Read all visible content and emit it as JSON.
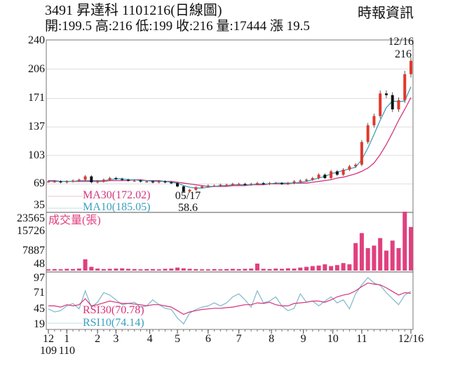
{
  "header": {
    "title": "3491  昇達科 1101216(日線圖)",
    "quote": "開:199.5 高:216 低:199 收:216 量:17444 漲 19.5",
    "source": "時報資訊"
  },
  "colors": {
    "up": "#e0392b",
    "down": "#111111",
    "ma30": "#d6337a",
    "ma10": "#3a9fc0",
    "volume": "#e0407f",
    "rsi30": "#d6337a",
    "rsi10": "#7fb8cc",
    "grid": "#dddddd"
  },
  "chart_data": [
    {
      "type": "candlestick",
      "panel": "price",
      "yticks": [
        "240",
        "206",
        "171",
        "137",
        "103",
        "69",
        "35"
      ],
      "ylim": [
        35,
        240
      ],
      "last_label": {
        "date": "12/16",
        "value": "216"
      },
      "low_label": {
        "date": "05/17",
        "value": "58.6"
      },
      "legend": {
        "ma30": "MA30(172.02)",
        "ma10": "MA10(185.05)"
      },
      "close": [
        72,
        72,
        71,
        72,
        73,
        74,
        78,
        71,
        72,
        74,
        76,
        75,
        74,
        73,
        73,
        72,
        72,
        71,
        72,
        71,
        70,
        66,
        60,
        62,
        65,
        66,
        67,
        67,
        68,
        68,
        69,
        69,
        68,
        69,
        70,
        69,
        70,
        70,
        69,
        70,
        72,
        73,
        74,
        76,
        80,
        76,
        84,
        80,
        86,
        90,
        92,
        119,
        139,
        150,
        177,
        175,
        158,
        169,
        200,
        216
      ],
      "ma10": [
        72,
        72,
        72,
        72,
        72,
        73,
        73,
        73,
        73,
        73,
        74,
        75,
        75,
        74,
        74,
        73,
        73,
        72,
        72,
        72,
        71,
        70,
        67,
        65,
        64,
        64,
        65,
        66,
        67,
        67,
        68,
        68,
        68,
        68,
        69,
        69,
        69,
        70,
        70,
        70,
        70,
        71,
        72,
        74,
        76,
        78,
        81,
        83,
        85,
        87,
        89,
        98,
        112,
        128,
        145,
        160,
        168,
        167,
        168,
        185.05
      ],
      "ma30": [
        73,
        73,
        72,
        72,
        72,
        72,
        72,
        72,
        72,
        72,
        73,
        73,
        73,
        73,
        74,
        74,
        73,
        73,
        73,
        72,
        72,
        71,
        70,
        69,
        68,
        67,
        66,
        66,
        66,
        66,
        67,
        67,
        67,
        68,
        68,
        68,
        69,
        69,
        69,
        69,
        70,
        70,
        70,
        71,
        72,
        73,
        74,
        76,
        77,
        79,
        81,
        84,
        88,
        94,
        104,
        116,
        130,
        145,
        158,
        172.02
      ]
    },
    {
      "type": "bar",
      "panel": "volume",
      "title": "成交量(張)",
      "yticks": [
        "23565",
        "15726",
        "7887",
        "48"
      ],
      "ylim": [
        0,
        23565
      ],
      "values": [
        500,
        600,
        500,
        700,
        600,
        800,
        4500,
        1500,
        800,
        600,
        700,
        800,
        900,
        700,
        600,
        500,
        600,
        600,
        500,
        700,
        800,
        1200,
        900,
        700,
        600,
        500,
        500,
        600,
        500,
        600,
        700,
        600,
        700,
        800,
        2800,
        700,
        600,
        800,
        700,
        900,
        800,
        1200,
        1500,
        1800,
        2000,
        2500,
        1800,
        2200,
        3000,
        2500,
        11000,
        15000,
        9000,
        10000,
        13000,
        8000,
        12000,
        9000,
        23565,
        17444
      ]
    },
    {
      "type": "line",
      "panel": "rsi",
      "yticks": [
        "97",
        "71",
        "45",
        "19"
      ],
      "legend": {
        "rsi30": "RSI30(70.78)",
        "rsi10": "RSI10(74.14)"
      },
      "rsi30": [
        50,
        50,
        48,
        52,
        50,
        52,
        62,
        50,
        52,
        55,
        58,
        56,
        54,
        54,
        53,
        52,
        50,
        52,
        52,
        50,
        48,
        42,
        36,
        40,
        42,
        44,
        45,
        46,
        46,
        47,
        48,
        50,
        52,
        52,
        55,
        54,
        56,
        52,
        50,
        50,
        54,
        55,
        56,
        58,
        58,
        56,
        60,
        65,
        68,
        70,
        75,
        82,
        88,
        86,
        85,
        80,
        74,
        68,
        72,
        70.78
      ],
      "rsi10": [
        45,
        40,
        42,
        50,
        54,
        45,
        75,
        48,
        56,
        72,
        68,
        60,
        52,
        54,
        56,
        48,
        50,
        60,
        52,
        46,
        44,
        30,
        20,
        38,
        44,
        48,
        50,
        55,
        50,
        55,
        65,
        70,
        60,
        48,
        75,
        55,
        58,
        65,
        50,
        42,
        46,
        70,
        56,
        58,
        50,
        58,
        65,
        55,
        60,
        45,
        70,
        85,
        97,
        88,
        84,
        72,
        62,
        52,
        68,
        74.14
      ]
    }
  ],
  "xaxis": {
    "months": [
      {
        "label": "12",
        "sub": "109",
        "pos": 0
      },
      {
        "label": "1",
        "sub": "110",
        "pos": 3
      },
      {
        "label": "2",
        "pos": 8
      },
      {
        "label": "3",
        "pos": 11
      },
      {
        "label": "4",
        "pos": 16.5
      },
      {
        "label": "5",
        "pos": 21
      },
      {
        "label": "6",
        "pos": 26
      },
      {
        "label": "7",
        "pos": 31
      },
      {
        "label": "8",
        "pos": 36.3
      },
      {
        "label": "9",
        "pos": 41.5
      },
      {
        "label": "10",
        "pos": 46.3
      },
      {
        "label": "11",
        "pos": 51
      },
      {
        "label": "12/16",
        "pos": 59
      }
    ]
  }
}
